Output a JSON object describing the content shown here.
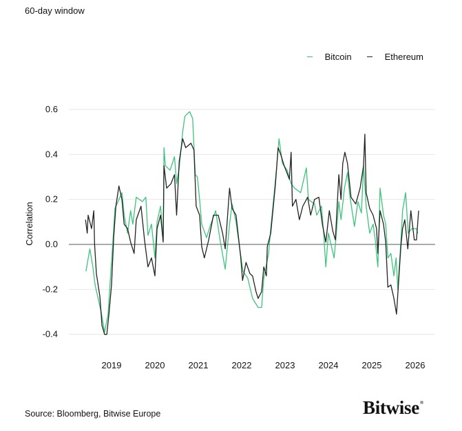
{
  "subtitle": "60-day window",
  "source": "Source: Bloomberg, Bitwise Europe",
  "logo": "Bitwise",
  "chart_data": {
    "type": "line",
    "title": "",
    "xlabel": "",
    "ylabel": "Correlation",
    "xlim": [
      2018.0,
      2026.5
    ],
    "ylim": [
      -0.45,
      0.65
    ],
    "yticks": [
      0.6,
      0.4,
      0.2,
      0.0,
      -0.2,
      -0.4
    ],
    "ytick_labels": [
      "0.6",
      "0.4",
      "0.2",
      "0.0",
      "-0.2",
      "-0.4"
    ],
    "xticks": [
      2019,
      2020,
      2021,
      2022,
      2023,
      2024,
      2025,
      2026
    ],
    "xtick_labels": [
      "2019",
      "2020",
      "2021",
      "2022",
      "2023",
      "2024",
      "2025",
      "2026"
    ],
    "grid": "horizontal",
    "legend_position": "top-right",
    "series": [
      {
        "name": "Bitcoin",
        "color": "#3cc47c",
        "x": [
          2018.41,
          2018.5,
          2018.57,
          2018.62,
          2018.76,
          2018.84,
          2018.92,
          2018.97,
          2019.02,
          2019.08,
          2019.24,
          2019.29,
          2019.37,
          2019.44,
          2019.49,
          2019.57,
          2019.71,
          2019.79,
          2019.84,
          2019.92,
          2020.0,
          2020.05,
          2020.13,
          2020.19,
          2020.21,
          2020.24,
          2020.35,
          2020.45,
          2020.5,
          2020.56,
          2020.64,
          2020.69,
          2020.8,
          2020.87,
          2020.93,
          2020.98,
          2021.03,
          2021.08,
          2021.19,
          2021.27,
          2021.4,
          2021.51,
          2021.62,
          2021.72,
          2021.78,
          2021.87,
          2022.03,
          2022.14,
          2022.25,
          2022.38,
          2022.46,
          2022.51,
          2022.62,
          2022.67,
          2022.75,
          2022.81,
          2022.86,
          2022.94,
          2023.05,
          2023.14,
          2023.22,
          2023.36,
          2023.49,
          2023.54,
          2023.68,
          2023.73,
          2023.84,
          2023.89,
          2023.94,
          2024.0,
          2024.13,
          2024.17,
          2024.24,
          2024.29,
          2024.37,
          2024.44,
          2024.49,
          2024.6,
          2024.68,
          2024.76,
          2024.81,
          2024.87,
          2024.95,
          2025.03,
          2025.08,
          2025.14,
          2025.19,
          2025.27,
          2025.32,
          2025.37,
          2025.44,
          2025.51,
          2025.56,
          2025.6,
          2025.67,
          2025.71,
          2025.78,
          2025.84,
          2025.92,
          2026.03,
          2026.06
        ],
        "y": [
          -0.12,
          -0.02,
          -0.1,
          -0.18,
          -0.3,
          -0.39,
          -0.31,
          -0.16,
          -0.02,
          0.16,
          0.23,
          0.13,
          0.05,
          0.15,
          0.09,
          0.21,
          0.19,
          0.21,
          0.04,
          0.09,
          -0.06,
          0.1,
          0.17,
          0.02,
          0.43,
          0.35,
          0.33,
          0.39,
          0.27,
          0.34,
          0.5,
          0.57,
          0.59,
          0.56,
          0.31,
          0.3,
          0.2,
          0.09,
          0.03,
          0.08,
          0.15,
          0.01,
          -0.11,
          0.09,
          0.18,
          0.1,
          -0.12,
          -0.15,
          -0.24,
          -0.28,
          -0.28,
          -0.15,
          -0.04,
          0.07,
          0.23,
          0.35,
          0.47,
          0.36,
          0.33,
          0.27,
          0.25,
          0.23,
          0.34,
          0.2,
          0.18,
          0.13,
          0.17,
          0.05,
          -0.1,
          0.05,
          -0.06,
          0.02,
          0.19,
          0.11,
          0.25,
          0.32,
          0.22,
          0.08,
          0.19,
          0.14,
          0.35,
          0.17,
          0.05,
          0.09,
          0.02,
          -0.1,
          0.25,
          0.13,
          0.09,
          -0.06,
          -0.04,
          -0.14,
          -0.06,
          -0.2,
          0.01,
          0.15,
          0.23,
          0.05,
          0.07,
          0.07,
          0.05
        ]
      },
      {
        "name": "Ethereum",
        "color": "#222222",
        "x": [
          2018.4,
          2018.44,
          2018.46,
          2018.54,
          2018.59,
          2018.61,
          2018.65,
          2018.73,
          2018.78,
          2018.84,
          2018.89,
          2018.94,
          2019.0,
          2019.05,
          2019.1,
          2019.17,
          2019.24,
          2019.29,
          2019.37,
          2019.44,
          2019.52,
          2019.57,
          2019.68,
          2019.76,
          2019.84,
          2019.92,
          2020.0,
          2020.05,
          2020.13,
          2020.19,
          2020.21,
          2020.27,
          2020.37,
          2020.45,
          2020.5,
          2020.56,
          2020.64,
          2020.71,
          2020.83,
          2020.9,
          2020.95,
          2021.03,
          2021.08,
          2021.14,
          2021.24,
          2021.35,
          2021.46,
          2021.56,
          2021.62,
          2021.72,
          2021.78,
          2021.87,
          2021.98,
          2022.02,
          2022.1,
          2022.19,
          2022.25,
          2022.33,
          2022.38,
          2022.46,
          2022.51,
          2022.57,
          2022.59,
          2022.67,
          2022.73,
          2022.78,
          2022.84,
          2022.9,
          2022.98,
          2023.1,
          2023.14,
          2023.17,
          2023.25,
          2023.33,
          2023.41,
          2023.52,
          2023.59,
          2023.68,
          2023.78,
          2023.86,
          2023.94,
          2024.02,
          2024.1,
          2024.16,
          2024.24,
          2024.29,
          2024.33,
          2024.38,
          2024.44,
          2024.52,
          2024.63,
          2024.73,
          2024.81,
          2024.84,
          2024.87,
          2024.95,
          2025.03,
          2025.11,
          2025.14,
          2025.19,
          2025.27,
          2025.32,
          2025.37,
          2025.44,
          2025.51,
          2025.57,
          2025.6,
          2025.67,
          2025.71,
          2025.76,
          2025.83,
          2025.9,
          2025.98,
          2026.03,
          2026.08
        ],
        "y": [
          0.11,
          0.05,
          0.13,
          0.07,
          0.15,
          0.0,
          -0.13,
          -0.23,
          -0.36,
          -0.4,
          -0.4,
          -0.31,
          -0.18,
          0.03,
          0.17,
          0.26,
          0.2,
          0.09,
          0.07,
          0.01,
          -0.04,
          0.11,
          0.17,
          0.02,
          -0.1,
          -0.06,
          -0.14,
          0.07,
          0.13,
          0.01,
          0.35,
          0.25,
          0.27,
          0.31,
          0.13,
          0.37,
          0.47,
          0.43,
          0.45,
          0.42,
          0.17,
          0.13,
          -0.01,
          -0.06,
          0.02,
          0.13,
          0.13,
          0.05,
          -0.02,
          0.25,
          0.16,
          0.13,
          -0.06,
          -0.16,
          -0.08,
          -0.13,
          -0.14,
          -0.21,
          -0.24,
          -0.21,
          -0.1,
          -0.14,
          -0.01,
          0.05,
          0.17,
          0.27,
          0.43,
          0.4,
          0.35,
          0.29,
          0.41,
          0.17,
          0.2,
          0.11,
          0.17,
          0.21,
          0.13,
          0.2,
          0.21,
          0.09,
          0.01,
          0.15,
          0.06,
          0.02,
          0.31,
          0.2,
          0.36,
          0.41,
          0.36,
          0.21,
          0.18,
          0.25,
          0.35,
          0.49,
          0.23,
          0.16,
          0.13,
          0.07,
          -0.04,
          0.15,
          0.09,
          0.01,
          -0.19,
          -0.18,
          -0.24,
          -0.31,
          -0.22,
          -0.01,
          0.07,
          0.11,
          -0.02,
          0.15,
          0.02,
          0.02,
          0.15
        ]
      }
    ]
  }
}
